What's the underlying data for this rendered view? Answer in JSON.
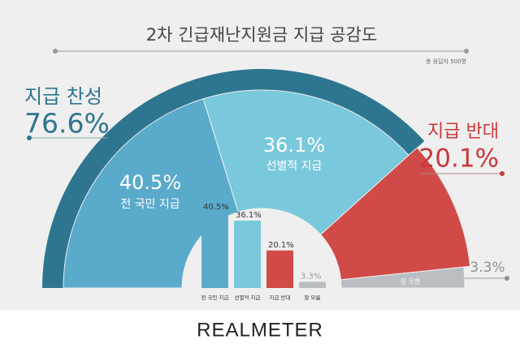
{
  "chart_data": [
    {
      "type": "donut",
      "title": "2차 긴급재난지원금 지급 공감도",
      "subtitle": "총 응답자 500명",
      "categories": [
        "전 국민 지급",
        "선별적 지급",
        "지급 반대",
        "잘 모름"
      ],
      "values": [
        40.5,
        36.1,
        20.1,
        3.3
      ],
      "value_labels": [
        "40.5%",
        "36.1%",
        "20.1%",
        "3.3%"
      ],
      "colors": [
        "#5aaacb",
        "#7ac8db",
        "#d04a48",
        "#b9bec3"
      ],
      "outer_ring": {
        "name": "지급 찬성",
        "value": 76.6,
        "value_label": "76.6%",
        "color": "#2e7590"
      }
    },
    {
      "type": "bar",
      "categories": [
        "전 국민 지급",
        "선별적 지급",
        "지급 반대",
        "잘 모름"
      ],
      "values": [
        40.5,
        36.1,
        20.1,
        3.3
      ],
      "value_labels": [
        "40.5%",
        "36.1%",
        "20.1%",
        "3.3%"
      ],
      "colors": [
        "#5aaacb",
        "#7ac8db",
        "#d04a48",
        "#b9bec3"
      ]
    }
  ],
  "footer": {
    "logo": "REALMETER"
  }
}
